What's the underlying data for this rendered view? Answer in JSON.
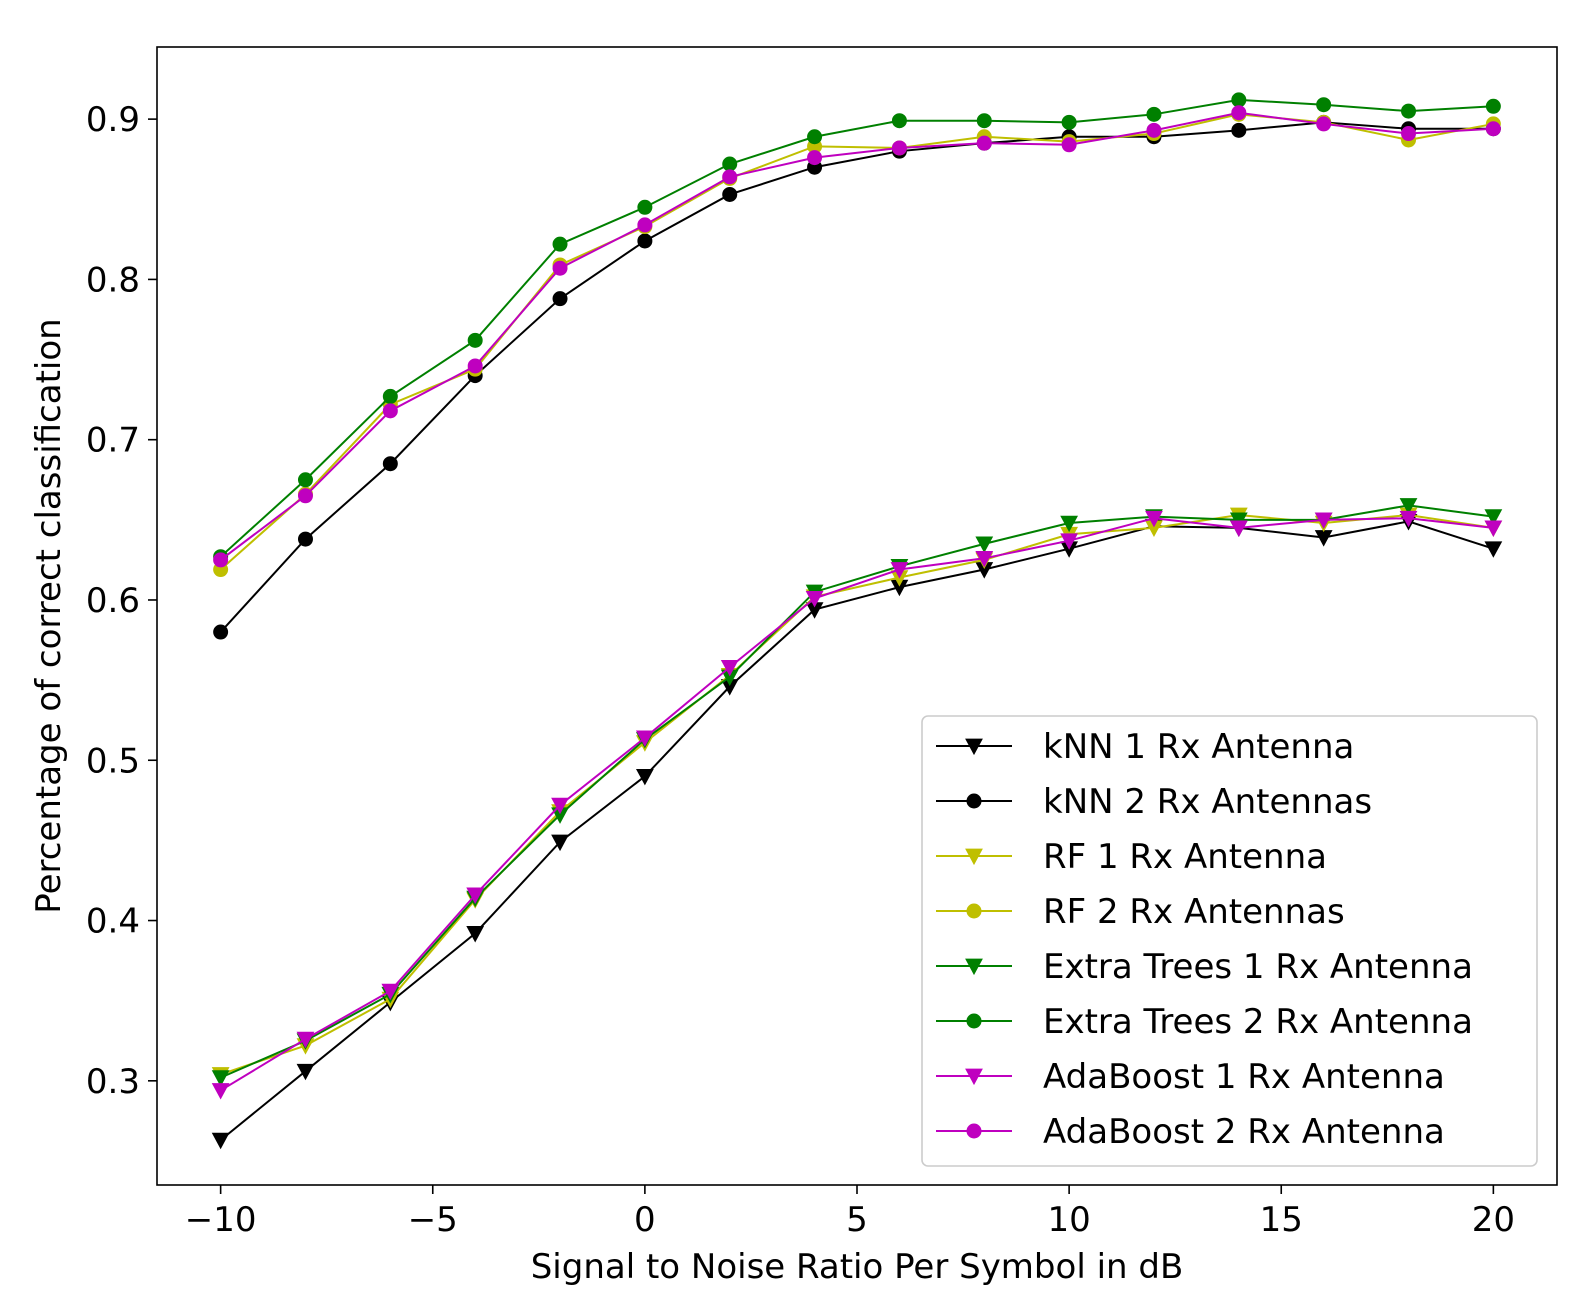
{
  "chart_data": {
    "type": "line",
    "title": "",
    "xlabel": "Signal to Noise Ratio Per Symbol in dB",
    "ylabel": "Percentage of correct classification",
    "xlim": [
      -11.5,
      21.5
    ],
    "ylim": [
      0.235,
      0.945
    ],
    "xticks": [
      -10,
      -5,
      0,
      5,
      10,
      15,
      20
    ],
    "xtick_labels": [
      "−10",
      "−5",
      "0",
      "5",
      "10",
      "15",
      "20"
    ],
    "yticks": [
      0.3,
      0.4,
      0.5,
      0.6,
      0.7,
      0.8,
      0.9
    ],
    "ytick_labels": [
      "0.3",
      "0.4",
      "0.5",
      "0.6",
      "0.7",
      "0.8",
      "0.9"
    ],
    "grid": false,
    "legend_position": "lower-right",
    "x": [
      -10,
      -8,
      -6,
      -4,
      -2,
      0,
      2,
      4,
      6,
      8,
      10,
      12,
      14,
      16,
      18,
      20
    ],
    "series": [
      {
        "name": "kNN 1 Rx Antenna",
        "color": "#000000",
        "marker": "triangle-down",
        "values": [
          0.263,
          0.306,
          0.349,
          0.392,
          0.449,
          0.49,
          0.546,
          0.594,
          0.608,
          0.619,
          0.632,
          0.646,
          0.645,
          0.639,
          0.649,
          0.632
        ]
      },
      {
        "name": "kNN 2 Rx Antennas",
        "color": "#000000",
        "marker": "circle",
        "values": [
          0.58,
          0.638,
          0.685,
          0.74,
          0.788,
          0.824,
          0.853,
          0.87,
          0.88,
          0.885,
          0.889,
          0.889,
          0.893,
          0.898,
          0.894,
          0.894
        ]
      },
      {
        "name": "RF 1 Rx Antenna",
        "color": "#bfbf00",
        "marker": "triangle-down",
        "values": [
          0.304,
          0.322,
          0.351,
          0.413,
          0.468,
          0.511,
          0.553,
          0.602,
          0.614,
          0.625,
          0.641,
          0.645,
          0.653,
          0.648,
          0.653,
          0.645
        ]
      },
      {
        "name": "RF 2 Rx Antennas",
        "color": "#bfbf00",
        "marker": "circle",
        "values": [
          0.619,
          0.666,
          0.722,
          0.744,
          0.809,
          0.833,
          0.863,
          0.883,
          0.882,
          0.889,
          0.886,
          0.891,
          0.903,
          0.898,
          0.887,
          0.897
        ]
      },
      {
        "name": "Extra Trees 1 Rx Antenna",
        "color": "#008000",
        "marker": "triangle-down",
        "values": [
          0.302,
          0.325,
          0.354,
          0.414,
          0.466,
          0.513,
          0.552,
          0.605,
          0.621,
          0.635,
          0.648,
          0.652,
          0.65,
          0.65,
          0.659,
          0.652
        ]
      },
      {
        "name": "Extra Trees 2 Rx Antenna",
        "color": "#008000",
        "marker": "circle",
        "values": [
          0.627,
          0.675,
          0.727,
          0.762,
          0.822,
          0.845,
          0.872,
          0.889,
          0.899,
          0.899,
          0.898,
          0.903,
          0.912,
          0.909,
          0.905,
          0.908
        ]
      },
      {
        "name": "AdaBoost 1 Rx Antenna",
        "color": "#bf00bf",
        "marker": "triangle-down",
        "values": [
          0.294,
          0.326,
          0.356,
          0.416,
          0.472,
          0.514,
          0.558,
          0.601,
          0.619,
          0.626,
          0.637,
          0.651,
          0.645,
          0.65,
          0.651,
          0.645
        ]
      },
      {
        "name": "AdaBoost 2 Rx Antenna",
        "color": "#bf00bf",
        "marker": "circle",
        "values": [
          0.625,
          0.665,
          0.718,
          0.746,
          0.807,
          0.834,
          0.864,
          0.876,
          0.882,
          0.885,
          0.884,
          0.893,
          0.904,
          0.897,
          0.891,
          0.894
        ]
      }
    ]
  }
}
